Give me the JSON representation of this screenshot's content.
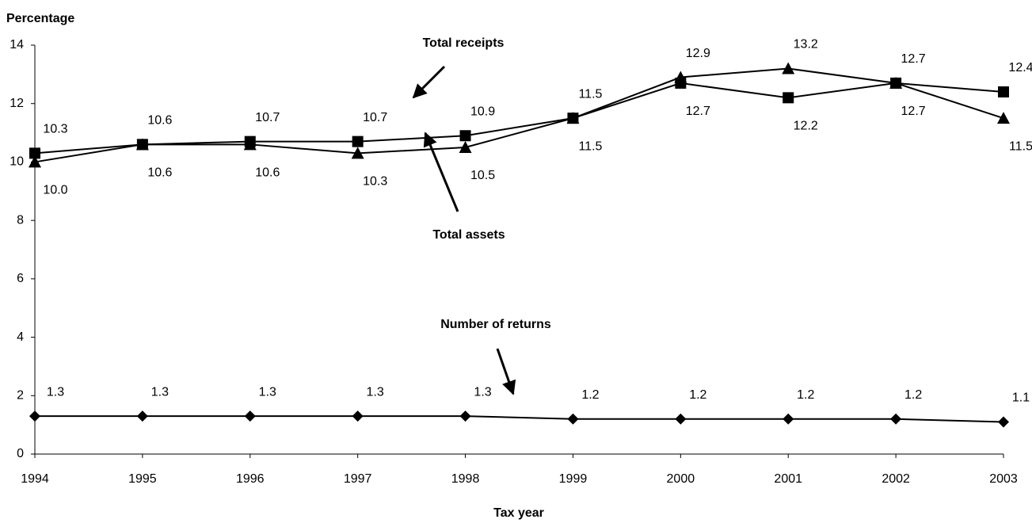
{
  "chart_data": {
    "type": "line",
    "y_label": "Percentage",
    "x_label": "Tax year",
    "categories": [
      "1994",
      "1995",
      "1996",
      "1997",
      "1998",
      "1999",
      "2000",
      "2001",
      "2002",
      "2003"
    ],
    "ylim": [
      0,
      14
    ],
    "yticks": [
      0,
      2,
      4,
      6,
      8,
      10,
      12,
      14
    ],
    "grid": false,
    "series": [
      {
        "name": "Total receipts",
        "color": "#000000",
        "marker": "square",
        "values": [
          10.3,
          10.6,
          10.7,
          10.7,
          10.9,
          11.5,
          12.7,
          12.2,
          12.7,
          12.4
        ],
        "value_labels": [
          "10.3",
          "10.6",
          "10.7",
          "10.7",
          "10.9",
          "11.5",
          "12.7",
          "12.2",
          "12.7",
          "12.4"
        ]
      },
      {
        "name": "Total assets",
        "color": "#000000",
        "marker": "triangle",
        "values": [
          10.0,
          10.6,
          10.6,
          10.3,
          10.5,
          11.5,
          12.9,
          13.2,
          12.7,
          11.5
        ],
        "value_labels": [
          "10.0",
          "10.6",
          "10.6",
          "10.3",
          "10.5",
          "11.5",
          "12.9",
          "13.2",
          "12.7",
          "11.5"
        ]
      },
      {
        "name": "Number of returns",
        "color": "#000000",
        "marker": "diamond",
        "values": [
          1.3,
          1.3,
          1.3,
          1.3,
          1.3,
          1.2,
          1.2,
          1.2,
          1.2,
          1.1
        ],
        "value_labels": [
          "1.3",
          "1.3",
          "1.3",
          "1.3",
          "1.3",
          "1.2",
          "1.2",
          "1.2",
          "1.2",
          "1.1"
        ]
      }
    ]
  }
}
